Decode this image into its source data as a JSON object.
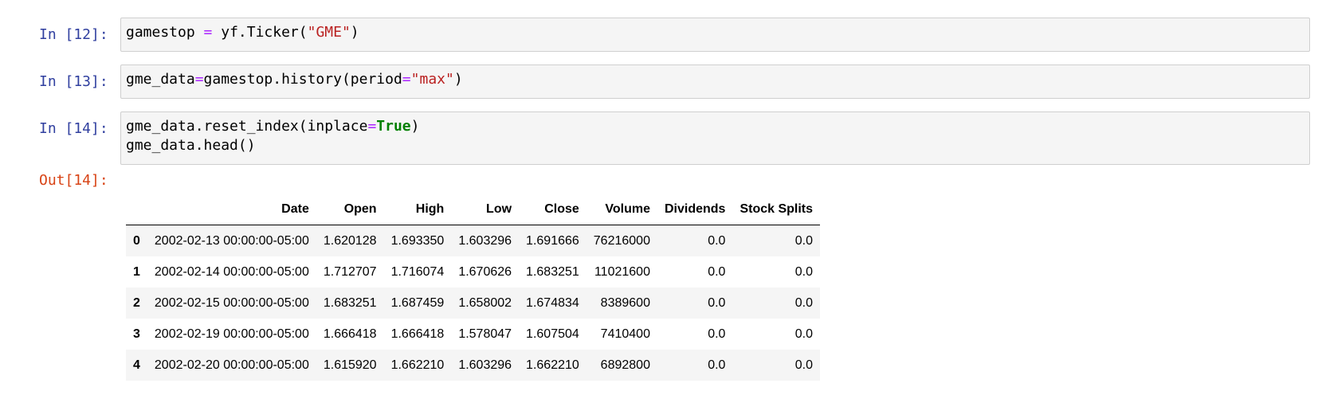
{
  "cells": [
    {
      "prompt": "In [12]:",
      "lines": [
        [
          {
            "t": "gamestop ",
            "c": "plain"
          },
          {
            "t": "=",
            "c": "op"
          },
          {
            "t": " yf.Ticker(",
            "c": "plain"
          },
          {
            "t": "\"GME\"",
            "c": "str"
          },
          {
            "t": ")",
            "c": "plain"
          }
        ]
      ]
    },
    {
      "prompt": "In [13]:",
      "lines": [
        [
          {
            "t": "gme_data",
            "c": "plain"
          },
          {
            "t": "=",
            "c": "op"
          },
          {
            "t": "gamestop.history(period",
            "c": "plain"
          },
          {
            "t": "=",
            "c": "op"
          },
          {
            "t": "\"max\"",
            "c": "str"
          },
          {
            "t": ")",
            "c": "plain"
          }
        ]
      ]
    },
    {
      "prompt": "In [14]:",
      "lines": [
        [
          {
            "t": "gme_data.reset_index(inplace",
            "c": "plain"
          },
          {
            "t": "=",
            "c": "op"
          },
          {
            "t": "True",
            "c": "kw"
          },
          {
            "t": ")",
            "c": "plain"
          }
        ],
        [
          {
            "t": "gme_data.head()",
            "c": "plain"
          }
        ]
      ]
    }
  ],
  "output": {
    "prompt": "Out[14]:",
    "columns": [
      "",
      "Date",
      "Open",
      "High",
      "Low",
      "Close",
      "Volume",
      "Dividends",
      "Stock Splits"
    ],
    "rows": [
      [
        "0",
        "2002-02-13 00:00:00-05:00",
        "1.620128",
        "1.693350",
        "1.603296",
        "1.691666",
        "76216000",
        "0.0",
        "0.0"
      ],
      [
        "1",
        "2002-02-14 00:00:00-05:00",
        "1.712707",
        "1.716074",
        "1.670626",
        "1.683251",
        "11021600",
        "0.0",
        "0.0"
      ],
      [
        "2",
        "2002-02-15 00:00:00-05:00",
        "1.683251",
        "1.687459",
        "1.658002",
        "1.674834",
        "8389600",
        "0.0",
        "0.0"
      ],
      [
        "3",
        "2002-02-19 00:00:00-05:00",
        "1.666418",
        "1.666418",
        "1.578047",
        "1.607504",
        "7410400",
        "0.0",
        "0.0"
      ],
      [
        "4",
        "2002-02-20 00:00:00-05:00",
        "1.615920",
        "1.662210",
        "1.603296",
        "1.662210",
        "6892800",
        "0.0",
        "0.0"
      ]
    ]
  }
}
